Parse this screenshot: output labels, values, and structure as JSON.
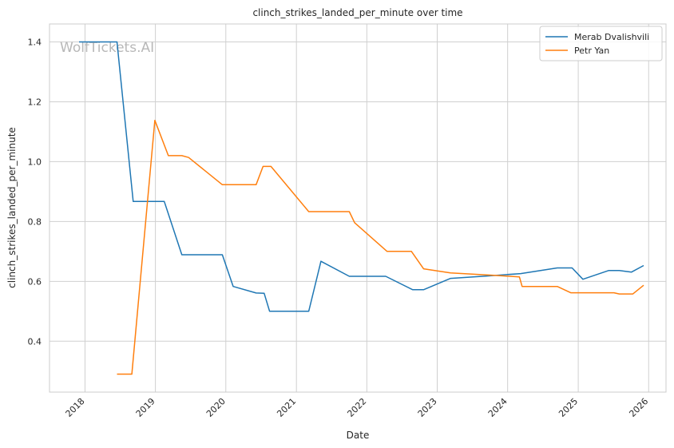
{
  "chart_data": {
    "type": "line",
    "title": "clinch_strikes_landed_per_minute over time",
    "xlabel": "Date",
    "ylabel": "clinch_strikes_landed_per_minute",
    "watermark": "WolfTickets.AI",
    "xlim": [
      "2017-07-01",
      "2026-04-01"
    ],
    "ylim": [
      0.23,
      1.46
    ],
    "x_ticks": [
      "2018",
      "2019",
      "2020",
      "2021",
      "2022",
      "2023",
      "2024",
      "2025",
      "2026"
    ],
    "y_ticks": [
      "0.4",
      "0.6",
      "0.8",
      "1.0",
      "1.2",
      "1.4"
    ],
    "grid": true,
    "legend_position": "top-right",
    "series": [
      {
        "name": "Merab Dvalishvili",
        "color": "#1f77b4",
        "points": [
          [
            "2017-12-01",
            1.4
          ],
          [
            "2018-06-16",
            1.4
          ],
          [
            "2018-09-08",
            0.867
          ],
          [
            "2019-02-16",
            0.867
          ],
          [
            "2019-05-18",
            0.689
          ],
          [
            "2019-12-14",
            0.689
          ],
          [
            "2020-02-08",
            0.583
          ],
          [
            "2020-06-06",
            0.561
          ],
          [
            "2020-07-18",
            0.56
          ],
          [
            "2020-08-15",
            0.5
          ],
          [
            "2021-03-06",
            0.5
          ],
          [
            "2021-05-08",
            0.667
          ],
          [
            "2021-10-02",
            0.617
          ],
          [
            "2022-04-09",
            0.617
          ],
          [
            "2022-08-27",
            0.572
          ],
          [
            "2022-10-22",
            0.572
          ],
          [
            "2023-03-11",
            0.61
          ],
          [
            "2023-09-16",
            0.618
          ],
          [
            "2024-03-09",
            0.626
          ],
          [
            "2024-09-14",
            0.645
          ],
          [
            "2024-11-30",
            0.645
          ],
          [
            "2025-01-25",
            0.607
          ],
          [
            "2025-06-07",
            0.636
          ],
          [
            "2025-08-02",
            0.636
          ],
          [
            "2025-10-04",
            0.631
          ],
          [
            "2025-12-06",
            0.653
          ]
        ]
      },
      {
        "name": "Petr Yan",
        "color": "#ff7f0e",
        "points": [
          [
            "2018-06-16",
            0.29
          ],
          [
            "2018-09-01",
            0.29
          ],
          [
            "2018-12-29",
            1.138
          ],
          [
            "2019-03-09",
            1.02
          ],
          [
            "2019-05-18",
            1.02
          ],
          [
            "2019-06-22",
            1.014
          ],
          [
            "2019-12-14",
            0.923
          ],
          [
            "2020-06-06",
            0.923
          ],
          [
            "2020-07-12",
            0.984
          ],
          [
            "2020-08-22",
            0.984
          ],
          [
            "2021-03-06",
            0.833
          ],
          [
            "2021-10-02",
            0.833
          ],
          [
            "2021-10-30",
            0.796
          ],
          [
            "2022-04-16",
            0.7
          ],
          [
            "2022-08-20",
            0.7
          ],
          [
            "2022-10-22",
            0.642
          ],
          [
            "2023-03-11",
            0.628
          ],
          [
            "2023-10-21",
            0.62
          ],
          [
            "2024-03-02",
            0.615
          ],
          [
            "2024-03-16",
            0.583
          ],
          [
            "2024-09-14",
            0.583
          ],
          [
            "2024-11-23",
            0.562
          ],
          [
            "2025-07-05",
            0.562
          ],
          [
            "2025-08-02",
            0.558
          ],
          [
            "2025-10-11",
            0.558
          ],
          [
            "2025-12-06",
            0.587
          ]
        ]
      }
    ]
  }
}
